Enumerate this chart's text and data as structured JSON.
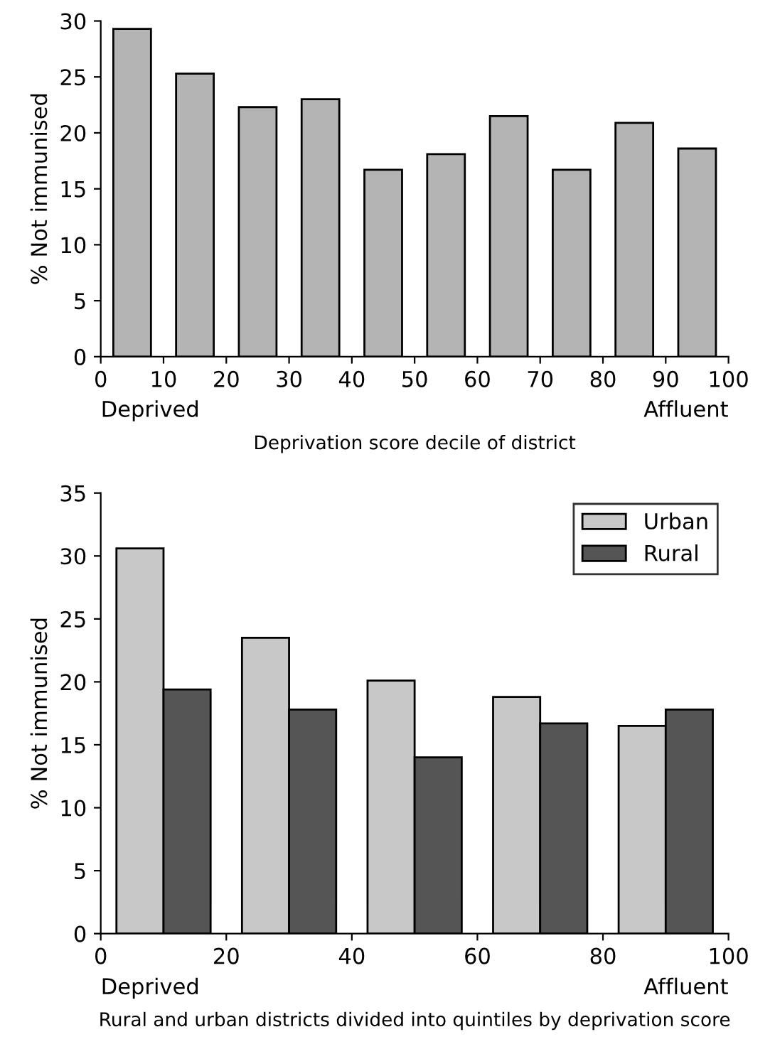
{
  "chart_data": [
    {
      "type": "bar",
      "xlabel": "Deprivation score decile of district",
      "ylabel": "% Not immunised",
      "x": [
        5,
        15,
        25,
        35,
        45,
        55,
        65,
        75,
        85,
        95
      ],
      "series": [
        {
          "color": "#b4b4b4",
          "values": [
            29.3,
            25.3,
            22.3,
            23.0,
            16.7,
            18.1,
            21.5,
            16.7,
            20.9,
            18.6
          ]
        }
      ],
      "xlim": [
        0,
        100
      ],
      "xticks": [
        0,
        10,
        20,
        30,
        40,
        50,
        60,
        70,
        80,
        90,
        100
      ],
      "ylim": [
        0,
        30
      ],
      "yticks": [
        0,
        5,
        10,
        15,
        20,
        25,
        30
      ],
      "annotations": [
        "Deprived",
        "Affluent"
      ],
      "grid": false,
      "legend": false
    },
    {
      "type": "bar",
      "xlabel": "Rural and urban districts divided into quintiles by deprivation score",
      "ylabel": "% Not immunised",
      "x": [
        10,
        30,
        50,
        70,
        90
      ],
      "series": [
        {
          "name": "Urban",
          "color": "#c8c8c8",
          "values": [
            30.6,
            23.5,
            20.1,
            18.8,
            16.5
          ]
        },
        {
          "name": "Rural",
          "color": "#555555",
          "values": [
            19.4,
            17.8,
            14.0,
            16.7,
            17.8
          ]
        }
      ],
      "xlim": [
        0,
        100
      ],
      "xticks": [
        0,
        20,
        40,
        60,
        80,
        100
      ],
      "ylim": [
        0,
        35
      ],
      "yticks": [
        0,
        5,
        10,
        15,
        20,
        25,
        30,
        35
      ],
      "annotations": [
        "Deprived",
        "Affluent"
      ],
      "grid": false,
      "legend": "top right"
    }
  ]
}
